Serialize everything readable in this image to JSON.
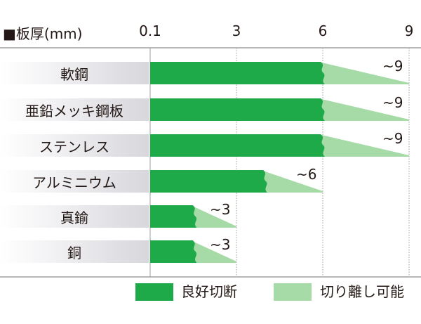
{
  "chart_data": {
    "type": "bar",
    "title": "■板厚(mm)",
    "tick_labels": [
      "0.1",
      "3",
      "6",
      "9"
    ],
    "ticks": [
      0.1,
      3,
      6,
      9
    ],
    "xlim": [
      0.1,
      9
    ],
    "categories": [
      "軟鋼",
      "亜鉛メッキ鋼板",
      "ステンレス",
      "アルミニウム",
      "真鍮",
      "銅"
    ],
    "series": [
      {
        "name": "良好切断",
        "values": [
          6,
          6,
          6,
          4,
          1.6,
          1.6
        ]
      },
      {
        "name": "切り離し可能",
        "values": [
          9,
          9,
          9,
          6,
          3,
          3
        ]
      }
    ],
    "end_labels": [
      "~9",
      "~9",
      "~9",
      "~6",
      "~3",
      "~3"
    ],
    "grid": true,
    "legend_position": "bottom-right"
  },
  "colors": {
    "good_cut": "#1faa4a",
    "separable": "#a6daa6",
    "grid": "#9d9d9d"
  }
}
